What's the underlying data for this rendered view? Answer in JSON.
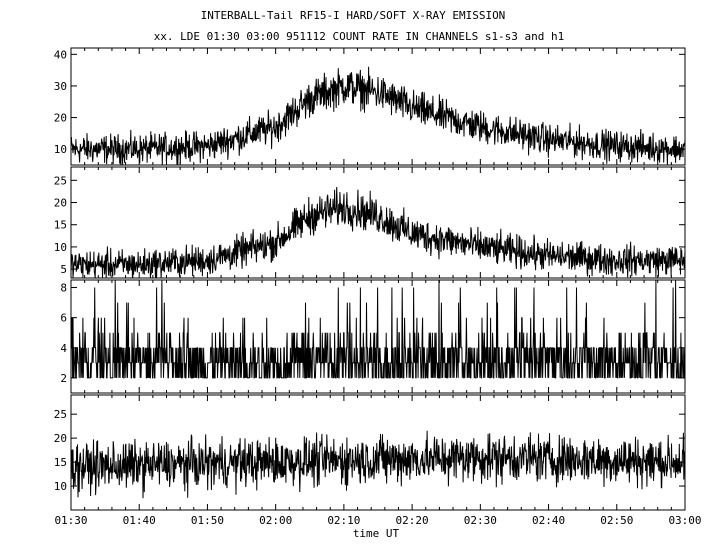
{
  "chart_data": {
    "type": "line",
    "title": "INTERBALL-Tail RF15-I HARD/SOFT X-RAY EMISSION",
    "subtitle": "xx. LDE 01:30 03:00 951112  COUNT RATE IN CHANNELS s1-s3 and h1",
    "xlabel": "time UT",
    "x_ticks": [
      "01:30",
      "01:40",
      "01:50",
      "02:00",
      "02:10",
      "02:20",
      "02:30",
      "02:40",
      "02:50",
      "03:00"
    ],
    "xlim": [
      "01:30",
      "03:00"
    ],
    "grid": false,
    "panels": [
      {
        "channel": "s1",
        "ylim": [
          5,
          42
        ],
        "yticks": [
          10,
          20,
          30,
          40
        ],
        "profile": {
          "x": [
            "01:30",
            "01:40",
            "01:50",
            "02:00",
            "02:05",
            "02:10",
            "02:15",
            "02:20",
            "02:30",
            "02:40",
            "02:50",
            "03:00"
          ],
          "y": [
            10,
            10,
            11,
            17,
            26,
            30,
            28,
            23,
            17,
            13,
            11,
            10
          ]
        },
        "noise_amplitude": 3.5
      },
      {
        "channel": "s2",
        "ylim": [
          3,
          28
        ],
        "yticks": [
          5,
          10,
          15,
          20,
          25
        ],
        "profile": {
          "x": [
            "01:30",
            "01:40",
            "01:50",
            "02:00",
            "02:05",
            "02:10",
            "02:15",
            "02:20",
            "02:30",
            "02:40",
            "02:50",
            "03:00"
          ],
          "y": [
            6,
            6,
            7,
            11,
            17,
            19,
            17,
            13,
            10,
            8,
            7,
            7
          ]
        },
        "noise_amplitude": 2.8
      },
      {
        "channel": "s3",
        "ylim": [
          1,
          8.5
        ],
        "yticks": [
          2,
          4,
          6,
          8
        ],
        "profile": {
          "x": [
            "01:30",
            "03:00"
          ],
          "y": [
            3.5,
            3.5
          ]
        },
        "noise_amplitude": 1.8
      },
      {
        "channel": "h1",
        "ylim": [
          5,
          29
        ],
        "yticks": [
          10,
          15,
          20,
          25
        ],
        "profile": {
          "x": [
            "01:30",
            "02:00",
            "02:30",
            "03:00"
          ],
          "y": [
            14,
            15,
            16,
            15
          ]
        },
        "noise_amplitude": 3.5
      }
    ]
  }
}
